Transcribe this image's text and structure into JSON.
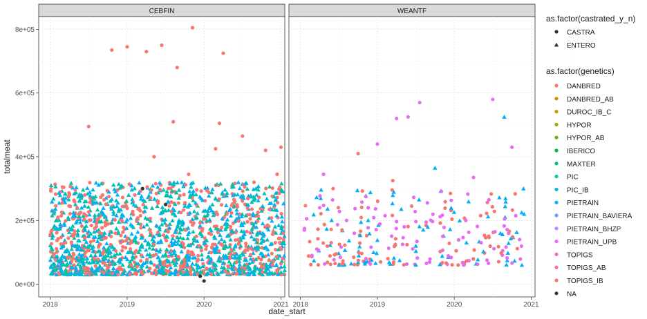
{
  "chart_data": {
    "type": "scatter",
    "facets": [
      "CEBFIN",
      "WEANTF"
    ],
    "x": {
      "label": "date_start",
      "ticks": [
        "2018",
        "2019",
        "2020",
        "2021"
      ],
      "range": [
        2017.85,
        2021.05
      ]
    },
    "y": {
      "label": "totalmeat",
      "ticks": [
        "0e+00",
        "2e+05",
        "4e+05",
        "6e+05",
        "8e+05"
      ],
      "tick_values": [
        0,
        200000,
        400000,
        600000,
        800000
      ],
      "range": [
        -40000,
        840000
      ]
    },
    "grid": true,
    "legend_position": "right",
    "shape_legend": {
      "title": "as.factor(castrated_y_n)",
      "items": [
        {
          "label": "CASTRA",
          "shape": "circle"
        },
        {
          "label": "ENTERO",
          "shape": "triangle"
        }
      ]
    },
    "color_legend": {
      "title": "as.factor(genetics)",
      "items": [
        {
          "label": "DANBRED",
          "color": "#f8766d"
        },
        {
          "label": "DANBRED_AB",
          "color": "#e58700"
        },
        {
          "label": "DUROC_IB_C",
          "color": "#c99800"
        },
        {
          "label": "HYPOR",
          "color": "#a3a500"
        },
        {
          "label": "HYPOR_AB",
          "color": "#6bb100"
        },
        {
          "label": "IBERICO",
          "color": "#00ba38"
        },
        {
          "label": "MAXTER",
          "color": "#00bf7d"
        },
        {
          "label": "PIC",
          "color": "#00c0af"
        },
        {
          "label": "PIC_IB",
          "color": "#00bcd8"
        },
        {
          "label": "PIETRAIN",
          "color": "#00b0f6"
        },
        {
          "label": "PIETRAIN_BAVIERA",
          "color": "#619cff"
        },
        {
          "label": "PIETRAIN_BHZP",
          "color": "#b983ff"
        },
        {
          "label": "PIETRAIN_UPB",
          "color": "#e76bf3"
        },
        {
          "label": "TOPIGS",
          "color": "#fd61d1"
        },
        {
          "label": "TOPIGS_AB",
          "color": "#ff67a4"
        },
        {
          "label": "TOPIGS_IB",
          "color": "#f8766d"
        },
        {
          "label": "NA",
          "color": "#333333"
        }
      ]
    },
    "series": [
      {
        "facet": "CEBFIN",
        "points": [
          {
            "x": 2018.0,
            "y": 155000,
            "g": "DANBRED",
            "s": "circle"
          },
          {
            "x": 2018.05,
            "y": 95000,
            "g": "DANBRED",
            "s": "circle"
          },
          {
            "x": 2018.1,
            "y": 210000,
            "g": "DANBRED",
            "s": "circle"
          },
          {
            "x": 2018.15,
            "y": 60000,
            "g": "PIC",
            "s": "triangle"
          },
          {
            "x": 2018.2,
            "y": 130000,
            "g": "DANBRED",
            "s": "circle"
          },
          {
            "x": 2018.25,
            "y": 175000,
            "g": "PIC",
            "s": "triangle"
          },
          {
            "x": 2018.3,
            "y": 80000,
            "g": "DANBRED",
            "s": "circle"
          },
          {
            "x": 2018.35,
            "y": 240000,
            "g": "DANBRED",
            "s": "circle"
          },
          {
            "x": 2018.4,
            "y": 110000,
            "g": "PIETRAIN",
            "s": "triangle"
          },
          {
            "x": 2018.45,
            "y": 145000,
            "g": "DANBRED",
            "s": "circle"
          },
          {
            "x": 2018.5,
            "y": 495000,
            "g": "DANBRED",
            "s": "circle"
          },
          {
            "x": 2018.55,
            "y": 70000,
            "g": "PIC",
            "s": "triangle"
          },
          {
            "x": 2018.6,
            "y": 190000,
            "g": "DANBRED",
            "s": "circle"
          },
          {
            "x": 2018.65,
            "y": 125000,
            "g": "DANBRED",
            "s": "circle"
          },
          {
            "x": 2018.7,
            "y": 265000,
            "g": "DANBRED",
            "s": "circle"
          },
          {
            "x": 2018.75,
            "y": 90000,
            "g": "PIC",
            "s": "triangle"
          },
          {
            "x": 2018.8,
            "y": 735000,
            "g": "DANBRED",
            "s": "circle"
          },
          {
            "x": 2018.85,
            "y": 160000,
            "g": "DANBRED",
            "s": "circle"
          },
          {
            "x": 2018.9,
            "y": 45000,
            "g": "DANBRED",
            "s": "circle"
          },
          {
            "x": 2018.95,
            "y": 215000,
            "g": "PIETRAIN",
            "s": "triangle"
          },
          {
            "x": 2019.0,
            "y": 745000,
            "g": "DANBRED",
            "s": "circle"
          },
          {
            "x": 2019.05,
            "y": 135000,
            "g": "DANBRED",
            "s": "circle"
          },
          {
            "x": 2019.1,
            "y": 280000,
            "g": "DANBRED",
            "s": "circle"
          },
          {
            "x": 2019.15,
            "y": 100000,
            "g": "PIC",
            "s": "triangle"
          },
          {
            "x": 2019.2,
            "y": 300000,
            "g": "NA",
            "s": "circle"
          },
          {
            "x": 2019.25,
            "y": 730000,
            "g": "DANBRED",
            "s": "circle"
          },
          {
            "x": 2019.3,
            "y": 170000,
            "g": "DANBRED",
            "s": "circle"
          },
          {
            "x": 2019.35,
            "y": 400000,
            "g": "DANBRED",
            "s": "circle"
          },
          {
            "x": 2019.4,
            "y": 85000,
            "g": "PIETRAIN",
            "s": "triangle"
          },
          {
            "x": 2019.45,
            "y": 750000,
            "g": "DANBRED",
            "s": "circle"
          },
          {
            "x": 2019.5,
            "y": 250000,
            "g": "NA",
            "s": "circle"
          },
          {
            "x": 2019.55,
            "y": 120000,
            "g": "DANBRED",
            "s": "circle"
          },
          {
            "x": 2019.6,
            "y": 510000,
            "g": "DANBRED",
            "s": "circle"
          },
          {
            "x": 2019.65,
            "y": 680000,
            "g": "DANBRED",
            "s": "circle"
          },
          {
            "x": 2019.7,
            "y": 195000,
            "g": "PIC",
            "s": "triangle"
          },
          {
            "x": 2019.75,
            "y": 65000,
            "g": "DANBRED",
            "s": "circle"
          },
          {
            "x": 2019.8,
            "y": 345000,
            "g": "DANBRED",
            "s": "circle"
          },
          {
            "x": 2019.85,
            "y": 805000,
            "g": "DANBRED",
            "s": "circle"
          },
          {
            "x": 2019.9,
            "y": 150000,
            "g": "DANBRED",
            "s": "circle"
          },
          {
            "x": 2019.95,
            "y": 25000,
            "g": "NA",
            "s": "circle"
          },
          {
            "x": 2020.0,
            "y": 10000,
            "g": "NA",
            "s": "circle"
          },
          {
            "x": 2020.05,
            "y": 230000,
            "g": "PIETRAIN",
            "s": "triangle"
          },
          {
            "x": 2020.1,
            "y": 115000,
            "g": "DANBRED",
            "s": "circle"
          },
          {
            "x": 2020.15,
            "y": 425000,
            "g": "DANBRED",
            "s": "circle"
          },
          {
            "x": 2020.2,
            "y": 505000,
            "g": "DANBRED",
            "s": "circle"
          },
          {
            "x": 2020.25,
            "y": 725000,
            "g": "DANBRED",
            "s": "circle"
          },
          {
            "x": 2020.3,
            "y": 180000,
            "g": "PIC",
            "s": "triangle"
          },
          {
            "x": 2020.35,
            "y": 95000,
            "g": "DANBRED",
            "s": "circle"
          },
          {
            "x": 2020.4,
            "y": 260000,
            "g": "DANBRED",
            "s": "circle"
          },
          {
            "x": 2020.45,
            "y": 140000,
            "g": "DANBRED",
            "s": "circle"
          },
          {
            "x": 2020.5,
            "y": 465000,
            "g": "DANBRED",
            "s": "circle"
          },
          {
            "x": 2020.55,
            "y": 75000,
            "g": "PIETRAIN",
            "s": "triangle"
          },
          {
            "x": 2020.6,
            "y": 205000,
            "g": "DANBRED",
            "s": "circle"
          },
          {
            "x": 2020.65,
            "y": 320000,
            "g": "DANBRED",
            "s": "circle"
          },
          {
            "x": 2020.7,
            "y": 110000,
            "g": "PIC",
            "s": "triangle"
          },
          {
            "x": 2020.75,
            "y": 55000,
            "g": "DANBRED",
            "s": "circle"
          },
          {
            "x": 2020.8,
            "y": 420000,
            "g": "DANBRED",
            "s": "circle"
          },
          {
            "x": 2020.85,
            "y": 235000,
            "g": "DANBRED",
            "s": "circle"
          },
          {
            "x": 2020.9,
            "y": 165000,
            "g": "DANBRED",
            "s": "circle"
          },
          {
            "x": 2020.95,
            "y": 345000,
            "g": "DANBRED",
            "s": "circle"
          },
          {
            "x": 2021.0,
            "y": 430000,
            "g": "DANBRED",
            "s": "circle"
          },
          {
            "x": 2021.02,
            "y": 130000,
            "g": "PIC",
            "s": "triangle"
          }
        ]
      },
      {
        "facet": "WEANTF",
        "points": [
          {
            "x": 2018.05,
            "y": 170000,
            "g": "PIETRAIN_UPB",
            "s": "circle"
          },
          {
            "x": 2018.15,
            "y": 90000,
            "g": "PIETRAIN_UPB",
            "s": "circle"
          },
          {
            "x": 2018.25,
            "y": 240000,
            "g": "PIETRAIN_UPB",
            "s": "circle"
          },
          {
            "x": 2018.3,
            "y": 345000,
            "g": "PIETRAIN_UPB",
            "s": "circle"
          },
          {
            "x": 2018.4,
            "y": 130000,
            "g": "DANBRED",
            "s": "circle"
          },
          {
            "x": 2018.5,
            "y": 60000,
            "g": "PIETRAIN",
            "s": "triangle"
          },
          {
            "x": 2018.6,
            "y": 200000,
            "g": "PIETRAIN_UPB",
            "s": "circle"
          },
          {
            "x": 2018.7,
            "y": 160000,
            "g": "PIETRAIN_UPB",
            "s": "circle"
          },
          {
            "x": 2018.75,
            "y": 410000,
            "g": "DANBRED",
            "s": "circle"
          },
          {
            "x": 2018.85,
            "y": 275000,
            "g": "PIETRAIN_UPB",
            "s": "circle"
          },
          {
            "x": 2018.95,
            "y": 100000,
            "g": "PIETRAIN",
            "s": "triangle"
          },
          {
            "x": 2019.0,
            "y": 440000,
            "g": "PIETRAIN_UPB",
            "s": "circle"
          },
          {
            "x": 2019.1,
            "y": 215000,
            "g": "PIETRAIN_UPB",
            "s": "circle"
          },
          {
            "x": 2019.2,
            "y": 325000,
            "g": "DANBRED",
            "s": "circle"
          },
          {
            "x": 2019.25,
            "y": 520000,
            "g": "PIETRAIN_UPB",
            "s": "circle"
          },
          {
            "x": 2019.35,
            "y": 180000,
            "g": "PIETRAIN_UPB",
            "s": "circle"
          },
          {
            "x": 2019.4,
            "y": 525000,
            "g": "PIETRAIN_UPB",
            "s": "circle"
          },
          {
            "x": 2019.5,
            "y": 120000,
            "g": "PIETRAIN",
            "s": "triangle"
          },
          {
            "x": 2019.55,
            "y": 570000,
            "g": "PIETRAIN_UPB",
            "s": "circle"
          },
          {
            "x": 2019.65,
            "y": 255000,
            "g": "PIETRAIN_UPB",
            "s": "circle"
          },
          {
            "x": 2019.75,
            "y": 365000,
            "g": "PIETRAIN",
            "s": "triangle"
          },
          {
            "x": 2019.85,
            "y": 150000,
            "g": "PIETRAIN_UPB",
            "s": "circle"
          },
          {
            "x": 2019.95,
            "y": 285000,
            "g": "DANBRED",
            "s": "circle"
          },
          {
            "x": 2020.05,
            "y": 60000,
            "g": "DANBRED",
            "s": "circle"
          },
          {
            "x": 2020.15,
            "y": 200000,
            "g": "PIETRAIN_UPB",
            "s": "circle"
          },
          {
            "x": 2020.25,
            "y": 335000,
            "g": "PIETRAIN_UPB",
            "s": "circle"
          },
          {
            "x": 2020.35,
            "y": 130000,
            "g": "PIETRAIN_UPB",
            "s": "circle"
          },
          {
            "x": 2020.45,
            "y": 265000,
            "g": "PIETRAIN_UPB",
            "s": "circle"
          },
          {
            "x": 2020.5,
            "y": 580000,
            "g": "PIETRAIN_UPB",
            "s": "circle"
          },
          {
            "x": 2020.6,
            "y": 160000,
            "g": "PIETRAIN",
            "s": "triangle"
          },
          {
            "x": 2020.65,
            "y": 525000,
            "g": "PIETRAIN",
            "s": "triangle"
          },
          {
            "x": 2020.75,
            "y": 430000,
            "g": "PIETRAIN_UPB",
            "s": "circle"
          },
          {
            "x": 2020.8,
            "y": 215000,
            "g": "PIETRAIN_UPB",
            "s": "circle"
          },
          {
            "x": 2020.85,
            "y": 140000,
            "g": "PIETRAIN_UPB",
            "s": "circle"
          },
          {
            "x": 2020.9,
            "y": 300000,
            "g": "PIETRAIN",
            "s": "triangle"
          }
        ]
      }
    ],
    "dense_band": [
      {
        "facet": "CEBFIN",
        "x_range": [
          2018.0,
          2021.05
        ],
        "y_range": [
          30000,
          320000
        ],
        "groups": [
          "DANBRED",
          "PIC",
          "PIETRAIN"
        ],
        "shapes": [
          "circle",
          "triangle"
        ]
      },
      {
        "facet": "WEANTF",
        "x_range": [
          2018.05,
          2020.92
        ],
        "y_range": [
          60000,
          300000
        ],
        "groups": [
          "PIETRAIN_UPB",
          "DANBRED",
          "PIETRAIN"
        ],
        "shapes": [
          "circle",
          "triangle"
        ]
      }
    ]
  }
}
